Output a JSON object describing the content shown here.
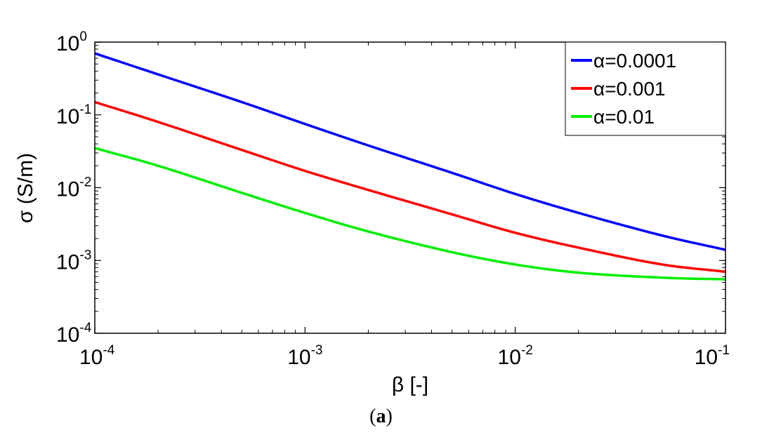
{
  "chart_data": {
    "type": "line",
    "xscale": "log",
    "yscale": "log",
    "xlim": [
      0.0001,
      0.1
    ],
    "ylim": [
      0.0001,
      1
    ],
    "xlabel": "β [-]",
    "ylabel": "σ (S/m)",
    "grid": false,
    "legend_position": "top-right",
    "x_ticks": [
      {
        "value": 0.0001,
        "base": "10",
        "exp": "-4"
      },
      {
        "value": 0.001,
        "base": "10",
        "exp": "-3"
      },
      {
        "value": 0.01,
        "base": "10",
        "exp": "-2"
      },
      {
        "value": 0.1,
        "base": "10",
        "exp": "-1"
      }
    ],
    "y_ticks": [
      {
        "value": 0.0001,
        "base": "10",
        "exp": "-4"
      },
      {
        "value": 0.001,
        "base": "10",
        "exp": "-3"
      },
      {
        "value": 0.01,
        "base": "10",
        "exp": "-2"
      },
      {
        "value": 0.1,
        "base": "10",
        "exp": "-1"
      },
      {
        "value": 1,
        "base": "10",
        "exp": "0"
      }
    ],
    "x": [
      0.0001,
      0.0002,
      0.0005,
      0.001,
      0.002,
      0.005,
      0.01,
      0.02,
      0.05,
      0.1
    ],
    "series": [
      {
        "name": "α=0.0001",
        "color": "#0000ff",
        "values": [
          0.7,
          0.36,
          0.15,
          0.075,
          0.038,
          0.016,
          0.0082,
          0.0045,
          0.0022,
          0.0014
        ]
      },
      {
        "name": "α=0.001",
        "color": "#ff0000",
        "values": [
          0.15,
          0.08,
          0.033,
          0.017,
          0.0093,
          0.0043,
          0.0024,
          0.0015,
          0.00088,
          0.0007
        ]
      },
      {
        "name": "α=0.01",
        "color": "#00ee00",
        "values": [
          0.035,
          0.02,
          0.0085,
          0.0045,
          0.0025,
          0.0013,
          0.00088,
          0.00068,
          0.00058,
          0.00055
        ]
      }
    ]
  },
  "caption": {
    "open": "(",
    "letter": "a",
    "close": ")"
  }
}
